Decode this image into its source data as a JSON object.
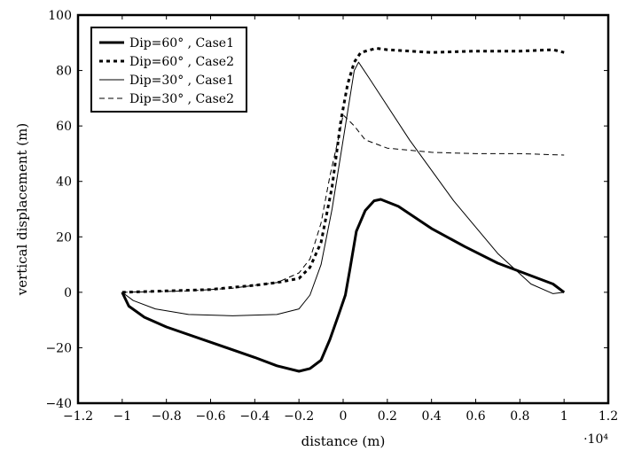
{
  "chart_data": {
    "type": "line",
    "title": "",
    "xlabel": "distance (m)",
    "ylabel": "vertical displacement (m)",
    "x_multiplier": "·10⁴",
    "xlim": [
      -1.2,
      1.2
    ],
    "ylim": [
      -40,
      100
    ],
    "xticks": [
      -1.2,
      -1.0,
      -0.8,
      -0.6,
      -0.4,
      -0.2,
      0,
      0.2,
      0.4,
      0.6,
      0.8,
      1.0,
      1.2
    ],
    "xtick_labels": [
      "−1.2",
      "−1",
      "−0.8",
      "−0.6",
      "−0.4",
      "−0.2",
      "0",
      "0.2",
      "0.4",
      "0.6",
      "0.8",
      "1",
      "1.2"
    ],
    "yticks": [
      -40,
      -20,
      0,
      20,
      40,
      60,
      80,
      100
    ],
    "ytick_labels": [
      "−40",
      "−20",
      "0",
      "20",
      "40",
      "60",
      "80",
      "100"
    ],
    "grid": false,
    "legend_position": "top-left",
    "series": [
      {
        "name": "Dip=60°  , Case1",
        "style": "solid",
        "width": 3,
        "color": "#000000",
        "points": [
          [
            -1.0,
            0
          ],
          [
            -0.97,
            -5
          ],
          [
            -0.9,
            -9
          ],
          [
            -0.8,
            -12.5
          ],
          [
            -0.6,
            -18
          ],
          [
            -0.4,
            -23.5
          ],
          [
            -0.3,
            -26.5
          ],
          [
            -0.2,
            -28.5
          ],
          [
            -0.15,
            -27.5
          ],
          [
            -0.1,
            -24.5
          ],
          [
            -0.06,
            -17
          ],
          [
            -0.02,
            -8
          ],
          [
            0.01,
            -1
          ],
          [
            0.03,
            8
          ],
          [
            0.06,
            22
          ],
          [
            0.1,
            29.5
          ],
          [
            0.14,
            33
          ],
          [
            0.17,
            33.5
          ],
          [
            0.25,
            31
          ],
          [
            0.4,
            23
          ],
          [
            0.55,
            16.5
          ],
          [
            0.7,
            10.5
          ],
          [
            0.85,
            6
          ],
          [
            0.95,
            3
          ],
          [
            1.0,
            0
          ]
        ]
      },
      {
        "name": "Dip=60°  , Case2",
        "style": "dotted",
        "width": 3,
        "color": "#000000",
        "points": [
          [
            -1.0,
            0
          ],
          [
            -0.8,
            0.5
          ],
          [
            -0.6,
            1
          ],
          [
            -0.4,
            2.5
          ],
          [
            -0.3,
            3.5
          ],
          [
            -0.2,
            5
          ],
          [
            -0.15,
            9
          ],
          [
            -0.1,
            18
          ],
          [
            -0.05,
            38
          ],
          [
            -0.01,
            62
          ],
          [
            0.02,
            75
          ],
          [
            0.05,
            83
          ],
          [
            0.08,
            86.5
          ],
          [
            0.15,
            88
          ],
          [
            0.2,
            87.5
          ],
          [
            0.4,
            86.5
          ],
          [
            0.6,
            87
          ],
          [
            0.8,
            87
          ],
          [
            0.95,
            87.5
          ],
          [
            1.0,
            86.5
          ]
        ]
      },
      {
        "name": "Dip=30°  , Case1",
        "style": "solid",
        "width": 1,
        "color": "#000000",
        "points": [
          [
            -1.0,
            0
          ],
          [
            -0.95,
            -3
          ],
          [
            -0.85,
            -6
          ],
          [
            -0.7,
            -8
          ],
          [
            -0.5,
            -8.5
          ],
          [
            -0.3,
            -8
          ],
          [
            -0.2,
            -6
          ],
          [
            -0.15,
            -1
          ],
          [
            -0.1,
            10
          ],
          [
            -0.05,
            30
          ],
          [
            0.0,
            55
          ],
          [
            0.03,
            70
          ],
          [
            0.05,
            80
          ],
          [
            0.07,
            83
          ],
          [
            0.12,
            77
          ],
          [
            0.3,
            55
          ],
          [
            0.5,
            33
          ],
          [
            0.7,
            14
          ],
          [
            0.85,
            3
          ],
          [
            0.95,
            -0.5
          ],
          [
            1.0,
            0
          ]
        ]
      },
      {
        "name": "Dip=30°  , Case2",
        "style": "dashed",
        "width": 1,
        "color": "#000000",
        "points": [
          [
            -1.0,
            0
          ],
          [
            -0.7,
            0.5
          ],
          [
            -0.5,
            1.5
          ],
          [
            -0.3,
            3.5
          ],
          [
            -0.2,
            7
          ],
          [
            -0.15,
            12
          ],
          [
            -0.1,
            25
          ],
          [
            -0.06,
            42
          ],
          [
            -0.02,
            56
          ],
          [
            0.0,
            64
          ],
          [
            0.05,
            60
          ],
          [
            0.1,
            55
          ],
          [
            0.2,
            52
          ],
          [
            0.4,
            50.5
          ],
          [
            0.6,
            50
          ],
          [
            0.8,
            50
          ],
          [
            1.0,
            49.5
          ]
        ]
      }
    ]
  }
}
